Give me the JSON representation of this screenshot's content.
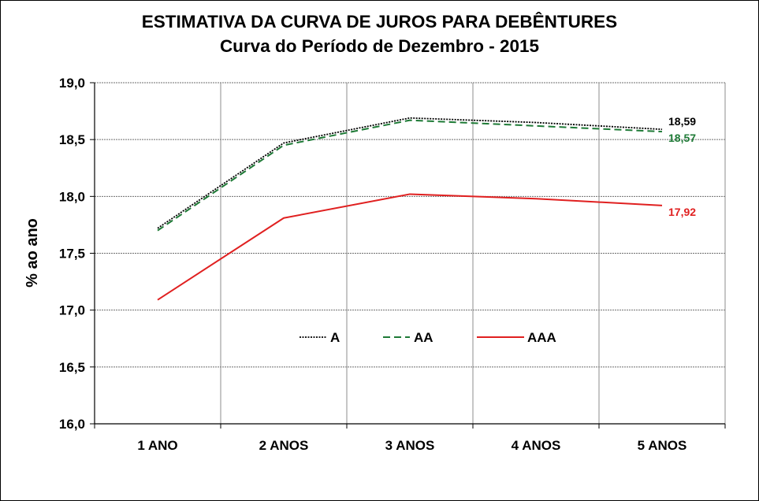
{
  "chart_data": {
    "type": "line",
    "title": "ESTIMATIVA DA CURVA DE JUROS PARA DEBÊNTURES",
    "subtitle": "Curva do Período de Dezembro - 2015",
    "ylabel": "% ao ano",
    "xlabel": "",
    "ylim": [
      16.0,
      19.0
    ],
    "ytick_step": 0.5,
    "ytick_labels": [
      "16,0",
      "16,5",
      "17,0",
      "17,5",
      "18,0",
      "18,5",
      "19,0"
    ],
    "categories": [
      "1 ANO",
      "2 ANOS",
      "3 ANOS",
      "4 ANOS",
      "5 ANOS"
    ],
    "grid": true,
    "legend_position": "center",
    "series": [
      {
        "name": "A",
        "values": [
          17.72,
          18.47,
          18.69,
          18.65,
          18.59
        ],
        "color": "#000000",
        "style": "dotted",
        "end_label": "18,59"
      },
      {
        "name": "AA",
        "values": [
          17.7,
          18.45,
          18.67,
          18.62,
          18.57
        ],
        "color": "#1e7a36",
        "style": "dashed",
        "end_label": "18,57"
      },
      {
        "name": "AAA",
        "values": [
          17.09,
          17.81,
          18.02,
          17.98,
          17.92
        ],
        "color": "#e02020",
        "style": "solid",
        "end_label": "17,92"
      }
    ]
  }
}
